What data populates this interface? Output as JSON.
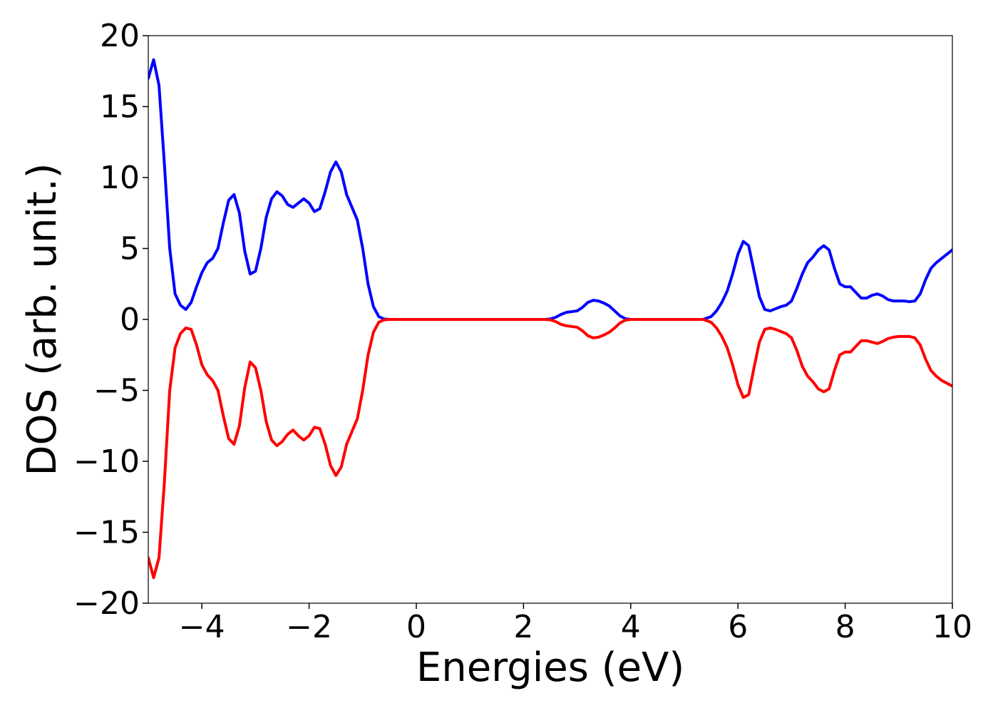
{
  "chart_data": {
    "type": "line",
    "title": "",
    "xlabel": "Energies (eV)",
    "ylabel": "DOS (arb. unit.)",
    "xlim": [
      -5,
      10
    ],
    "ylim": [
      -20,
      20
    ],
    "grid": false,
    "legend": "none",
    "x_ticks": [
      -4,
      -2,
      0,
      2,
      4,
      6,
      8,
      10
    ],
    "x_tick_labels": [
      "−4",
      "−2",
      "0",
      "2",
      "4",
      "6",
      "8",
      "10"
    ],
    "y_ticks": [
      20,
      15,
      10,
      5,
      0,
      -5,
      -10,
      -15,
      -20
    ],
    "y_tick_labels": [
      "20",
      "15",
      "10",
      "5",
      "0",
      "−5",
      "−10",
      "−15",
      "−20"
    ],
    "series": [
      {
        "color": "#0000ff",
        "points": [
          [
            -5.0,
            17.0
          ],
          [
            -4.9,
            18.3
          ],
          [
            -4.8,
            16.5
          ],
          [
            -4.7,
            11.0
          ],
          [
            -4.6,
            5.0
          ],
          [
            -4.5,
            1.8
          ],
          [
            -4.4,
            1.0
          ],
          [
            -4.3,
            0.7
          ],
          [
            -4.2,
            1.2
          ],
          [
            -4.1,
            2.3
          ],
          [
            -4.0,
            3.3
          ],
          [
            -3.9,
            4.0
          ],
          [
            -3.8,
            4.3
          ],
          [
            -3.7,
            5.0
          ],
          [
            -3.6,
            6.8
          ],
          [
            -3.5,
            8.4
          ],
          [
            -3.4,
            8.8
          ],
          [
            -3.3,
            7.5
          ],
          [
            -3.2,
            4.8
          ],
          [
            -3.1,
            3.2
          ],
          [
            -3.0,
            3.4
          ],
          [
            -2.9,
            5.0
          ],
          [
            -2.8,
            7.2
          ],
          [
            -2.7,
            8.5
          ],
          [
            -2.6,
            9.0
          ],
          [
            -2.5,
            8.7
          ],
          [
            -2.4,
            8.1
          ],
          [
            -2.3,
            7.9
          ],
          [
            -2.2,
            8.2
          ],
          [
            -2.1,
            8.5
          ],
          [
            -2.0,
            8.2
          ],
          [
            -1.9,
            7.6
          ],
          [
            -1.8,
            7.8
          ],
          [
            -1.7,
            9.0
          ],
          [
            -1.6,
            10.4
          ],
          [
            -1.5,
            11.1
          ],
          [
            -1.4,
            10.4
          ],
          [
            -1.3,
            8.8
          ],
          [
            -1.2,
            7.9
          ],
          [
            -1.1,
            7.0
          ],
          [
            -1.0,
            5.0
          ],
          [
            -0.9,
            2.5
          ],
          [
            -0.8,
            0.9
          ],
          [
            -0.7,
            0.2
          ],
          [
            -0.6,
            0.03
          ],
          [
            -0.5,
            0.0
          ],
          [
            0.0,
            0.0
          ],
          [
            1.0,
            0.0
          ],
          [
            2.0,
            0.0
          ],
          [
            2.4,
            0.0
          ],
          [
            2.5,
            0.03
          ],
          [
            2.6,
            0.15
          ],
          [
            2.7,
            0.35
          ],
          [
            2.8,
            0.5
          ],
          [
            2.9,
            0.55
          ],
          [
            3.0,
            0.6
          ],
          [
            3.1,
            0.85
          ],
          [
            3.2,
            1.2
          ],
          [
            3.3,
            1.35
          ],
          [
            3.4,
            1.3
          ],
          [
            3.5,
            1.15
          ],
          [
            3.6,
            0.95
          ],
          [
            3.7,
            0.6
          ],
          [
            3.8,
            0.25
          ],
          [
            3.9,
            0.05
          ],
          [
            4.0,
            0.0
          ],
          [
            5.0,
            0.0
          ],
          [
            5.35,
            0.0
          ],
          [
            5.5,
            0.2
          ],
          [
            5.6,
            0.6
          ],
          [
            5.7,
            1.2
          ],
          [
            5.8,
            2.0
          ],
          [
            5.9,
            3.2
          ],
          [
            6.0,
            4.6
          ],
          [
            6.1,
            5.5
          ],
          [
            6.2,
            5.2
          ],
          [
            6.3,
            3.4
          ],
          [
            6.4,
            1.6
          ],
          [
            6.5,
            0.7
          ],
          [
            6.6,
            0.6
          ],
          [
            6.7,
            0.75
          ],
          [
            6.8,
            0.9
          ],
          [
            6.9,
            1.0
          ],
          [
            7.0,
            1.3
          ],
          [
            7.1,
            2.2
          ],
          [
            7.2,
            3.2
          ],
          [
            7.3,
            4.0
          ],
          [
            7.4,
            4.4
          ],
          [
            7.5,
            4.9
          ],
          [
            7.6,
            5.2
          ],
          [
            7.7,
            4.9
          ],
          [
            7.8,
            3.6
          ],
          [
            7.9,
            2.5
          ],
          [
            8.0,
            2.3
          ],
          [
            8.1,
            2.3
          ],
          [
            8.2,
            1.9
          ],
          [
            8.3,
            1.5
          ],
          [
            8.4,
            1.5
          ],
          [
            8.5,
            1.7
          ],
          [
            8.6,
            1.8
          ],
          [
            8.7,
            1.65
          ],
          [
            8.8,
            1.4
          ],
          [
            8.9,
            1.3
          ],
          [
            9.0,
            1.3
          ],
          [
            9.1,
            1.3
          ],
          [
            9.2,
            1.25
          ],
          [
            9.3,
            1.3
          ],
          [
            9.4,
            1.8
          ],
          [
            9.5,
            2.8
          ],
          [
            9.6,
            3.6
          ],
          [
            9.7,
            4.0
          ],
          [
            9.8,
            4.3
          ],
          [
            9.9,
            4.6
          ],
          [
            10.0,
            4.9
          ]
        ]
      },
      {
        "color": "#ff0000",
        "points": [
          [
            -5.0,
            -16.8
          ],
          [
            -4.9,
            -18.2
          ],
          [
            -4.8,
            -16.8
          ],
          [
            -4.7,
            -11.5
          ],
          [
            -4.6,
            -5.0
          ],
          [
            -4.5,
            -2.0
          ],
          [
            -4.4,
            -1.0
          ],
          [
            -4.3,
            -0.6
          ],
          [
            -4.2,
            -0.7
          ],
          [
            -4.1,
            -1.8
          ],
          [
            -4.0,
            -3.2
          ],
          [
            -3.9,
            -3.9
          ],
          [
            -3.8,
            -4.3
          ],
          [
            -3.7,
            -5.0
          ],
          [
            -3.6,
            -6.8
          ],
          [
            -3.5,
            -8.4
          ],
          [
            -3.4,
            -8.8
          ],
          [
            -3.3,
            -7.5
          ],
          [
            -3.2,
            -4.8
          ],
          [
            -3.1,
            -3.0
          ],
          [
            -3.0,
            -3.4
          ],
          [
            -2.9,
            -5.0
          ],
          [
            -2.8,
            -7.2
          ],
          [
            -2.7,
            -8.5
          ],
          [
            -2.6,
            -8.9
          ],
          [
            -2.5,
            -8.6
          ],
          [
            -2.4,
            -8.1
          ],
          [
            -2.3,
            -7.8
          ],
          [
            -2.2,
            -8.2
          ],
          [
            -2.1,
            -8.5
          ],
          [
            -2.0,
            -8.2
          ],
          [
            -1.9,
            -7.6
          ],
          [
            -1.8,
            -7.7
          ],
          [
            -1.7,
            -8.8
          ],
          [
            -1.6,
            -10.3
          ],
          [
            -1.5,
            -11.0
          ],
          [
            -1.4,
            -10.4
          ],
          [
            -1.3,
            -8.8
          ],
          [
            -1.2,
            -7.9
          ],
          [
            -1.1,
            -7.0
          ],
          [
            -1.0,
            -5.0
          ],
          [
            -0.9,
            -2.5
          ],
          [
            -0.8,
            -0.9
          ],
          [
            -0.7,
            -0.2
          ],
          [
            -0.6,
            -0.03
          ],
          [
            -0.5,
            0.0
          ],
          [
            0.0,
            0.0
          ],
          [
            1.0,
            0.0
          ],
          [
            2.0,
            0.0
          ],
          [
            2.4,
            0.0
          ],
          [
            2.5,
            -0.03
          ],
          [
            2.6,
            -0.15
          ],
          [
            2.7,
            -0.35
          ],
          [
            2.8,
            -0.45
          ],
          [
            2.9,
            -0.5
          ],
          [
            3.0,
            -0.55
          ],
          [
            3.1,
            -0.8
          ],
          [
            3.2,
            -1.15
          ],
          [
            3.3,
            -1.3
          ],
          [
            3.4,
            -1.25
          ],
          [
            3.5,
            -1.1
          ],
          [
            3.6,
            -0.9
          ],
          [
            3.7,
            -0.6
          ],
          [
            3.8,
            -0.25
          ],
          [
            3.9,
            -0.05
          ],
          [
            4.0,
            0.0
          ],
          [
            5.0,
            0.0
          ],
          [
            5.35,
            0.0
          ],
          [
            5.5,
            -0.2
          ],
          [
            5.6,
            -0.6
          ],
          [
            5.7,
            -1.2
          ],
          [
            5.8,
            -2.0
          ],
          [
            5.9,
            -3.2
          ],
          [
            6.0,
            -4.6
          ],
          [
            6.1,
            -5.5
          ],
          [
            6.2,
            -5.3
          ],
          [
            6.3,
            -3.4
          ],
          [
            6.4,
            -1.6
          ],
          [
            6.5,
            -0.7
          ],
          [
            6.6,
            -0.6
          ],
          [
            6.7,
            -0.7
          ],
          [
            6.8,
            -0.85
          ],
          [
            6.9,
            -1.0
          ],
          [
            7.0,
            -1.3
          ],
          [
            7.1,
            -2.2
          ],
          [
            7.2,
            -3.3
          ],
          [
            7.3,
            -4.0
          ],
          [
            7.4,
            -4.4
          ],
          [
            7.5,
            -4.9
          ],
          [
            7.6,
            -5.1
          ],
          [
            7.7,
            -4.9
          ],
          [
            7.8,
            -3.6
          ],
          [
            7.9,
            -2.5
          ],
          [
            8.0,
            -2.3
          ],
          [
            8.1,
            -2.3
          ],
          [
            8.2,
            -1.9
          ],
          [
            8.3,
            -1.5
          ],
          [
            8.4,
            -1.5
          ],
          [
            8.5,
            -1.6
          ],
          [
            8.6,
            -1.7
          ],
          [
            8.7,
            -1.55
          ],
          [
            8.8,
            -1.35
          ],
          [
            8.9,
            -1.25
          ],
          [
            9.0,
            -1.2
          ],
          [
            9.1,
            -1.2
          ],
          [
            9.2,
            -1.2
          ],
          [
            9.3,
            -1.3
          ],
          [
            9.4,
            -1.8
          ],
          [
            9.5,
            -2.8
          ],
          [
            9.6,
            -3.6
          ],
          [
            9.7,
            -4.0
          ],
          [
            9.8,
            -4.3
          ],
          [
            9.9,
            -4.5
          ],
          [
            10.0,
            -4.7
          ]
        ]
      }
    ]
  }
}
